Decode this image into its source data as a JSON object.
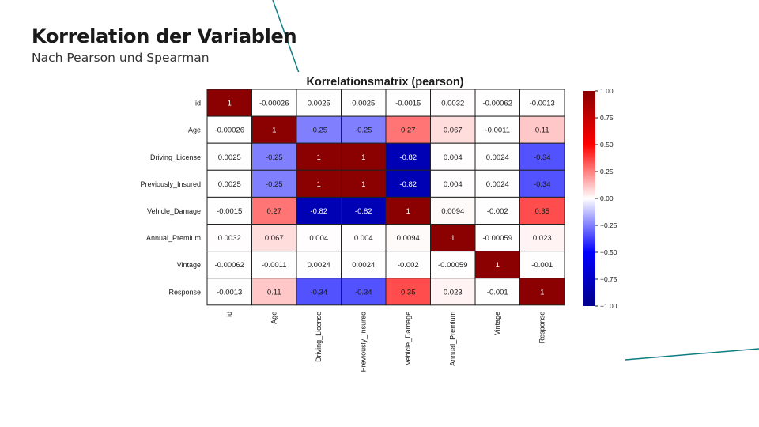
{
  "slide": {
    "title": "Korrelation der Variablen",
    "subtitle": "Nach Pearson und Spearman"
  },
  "colors": {
    "accent_line": "#0f7c82",
    "text": "#1a1a1a",
    "scale_low": "#00008b",
    "scale_mid_low": "#0000ff",
    "scale_mid": "#ffffff",
    "scale_mid_high": "#ff0000",
    "scale_high": "#8b0000"
  },
  "chart_data": {
    "type": "heatmap",
    "title": "Korrelationsmatrix (pearson)",
    "variables": [
      "id",
      "Age",
      "Driving_License",
      "Previously_Insured",
      "Vehicle_Damage",
      "Annual_Premium",
      "Vintage",
      "Response"
    ],
    "values": [
      [
        1,
        -0.00026,
        0.0025,
        0.0025,
        -0.0015,
        0.0032,
        -0.00062,
        -0.0013
      ],
      [
        -0.00026,
        1,
        -0.25,
        -0.25,
        0.27,
        0.067,
        -0.0011,
        0.11
      ],
      [
        0.0025,
        -0.25,
        1,
        1,
        -0.82,
        0.004,
        0.0024,
        -0.34
      ],
      [
        0.0025,
        -0.25,
        1,
        1,
        -0.82,
        0.004,
        0.0024,
        -0.34
      ],
      [
        -0.0015,
        0.27,
        -0.82,
        -0.82,
        1,
        0.0094,
        -0.002,
        0.35
      ],
      [
        0.0032,
        0.067,
        0.004,
        0.004,
        0.0094,
        1,
        -0.00059,
        0.023
      ],
      [
        -0.00062,
        -0.0011,
        0.0024,
        0.0024,
        -0.002,
        -0.00059,
        1,
        -0.001
      ],
      [
        -0.0013,
        0.11,
        -0.34,
        -0.34,
        0.35,
        0.023,
        -0.001,
        1
      ]
    ],
    "colorbar": {
      "range": [
        -1,
        1
      ],
      "ticks": [
        "1.00",
        "0.75",
        "0.50",
        "0.25",
        "0.00",
        "−0.25",
        "−0.50",
        "−0.75",
        "−1.00"
      ]
    }
  }
}
